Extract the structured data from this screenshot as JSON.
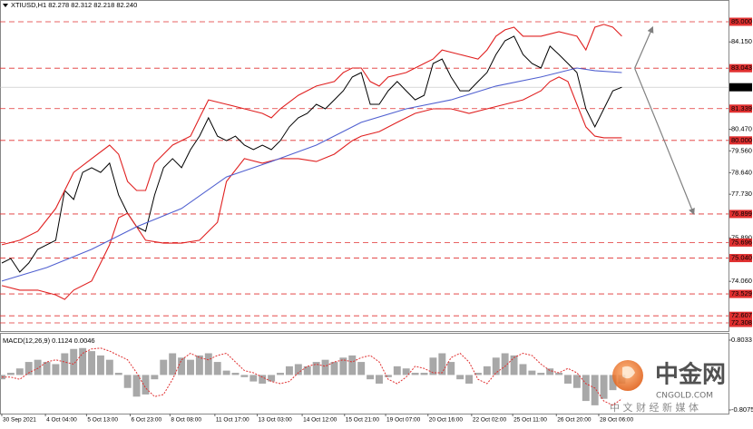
{
  "chart_data": [
    {
      "type": "line",
      "title": "XTIUSD,H1  82.278 82.312 82.218 82.240",
      "xlim": [
        -1.4,
        566.1
      ],
      "ylim": [
        71.965,
        85.917
      ],
      "yticks": [
        {
          "value": 84.15,
          "label": "84.150"
        },
        {
          "value": 80.47,
          "label": "80.470"
        },
        {
          "value": 79.56,
          "label": "79.560"
        },
        {
          "value": 78.64,
          "label": "78.640"
        },
        {
          "value": 77.73,
          "label": "77.730"
        },
        {
          "value": 75.89,
          "label": "75.890"
        },
        {
          "value": 74.06,
          "label": "74.060"
        }
      ],
      "levels_color": "#e03030",
      "levels": [
        {
          "value": 85,
          "label": "85.000"
        },
        {
          "value": 83.043,
          "label": "83.043"
        },
        {
          "value": 81.339,
          "label": "81.339"
        },
        {
          "value": 80,
          "label": "80.000"
        },
        {
          "value": 76.899,
          "label": "76.899"
        },
        {
          "value": 75.696,
          "label": "75.696"
        },
        {
          "value": 75.04,
          "label": "75.040"
        },
        {
          "value": 73.529,
          "label": "73.529"
        },
        {
          "value": 72.607,
          "label": "72.607"
        },
        {
          "value": 72.308,
          "label": "72.308"
        }
      ],
      "current_price": {
        "value": 82.24,
        "label": "82.240"
      },
      "series": [
        {
          "color": "#000000",
          "x": [
            0,
            7,
            14,
            21,
            28,
            35,
            42,
            49,
            56,
            63,
            70,
            77,
            84,
            91,
            98,
            105,
            112,
            119,
            126,
            133,
            140,
            147,
            154,
            161,
            168,
            175,
            182,
            189,
            196,
            203,
            210,
            217,
            224,
            231,
            238,
            245,
            252,
            259,
            266,
            273,
            280,
            287,
            294,
            301,
            308,
            315,
            322,
            329,
            336,
            343,
            350,
            357,
            364,
            371,
            378,
            385,
            392,
            399,
            406,
            413,
            420,
            427,
            434,
            441,
            448,
            455,
            462,
            469,
            476,
            483
          ],
          "values": [
            74.83,
            75.02,
            74.45,
            74.83,
            75.41,
            75.6,
            75.79,
            77.89,
            77.51,
            78.65,
            78.85,
            78.65,
            79.04,
            77.7,
            76.93,
            76.36,
            76.17,
            77.7,
            78.85,
            79.23,
            78.85,
            79.61,
            80.18,
            80.95,
            80.18,
            79.99,
            80.18,
            79.8,
            79.61,
            79.8,
            79.61,
            79.99,
            80.57,
            80.95,
            81.14,
            81.52,
            81.33,
            81.71,
            82.09,
            82.67,
            82.86,
            81.52,
            81.52,
            82.09,
            82.48,
            82.09,
            81.71,
            81.9,
            83.24,
            83.43,
            82.67,
            82.09,
            82.09,
            82.48,
            82.86,
            83.62,
            84.2,
            84.39,
            83.62,
            83.24,
            83.05,
            83.97,
            83.62,
            83.24,
            82.86,
            81.33,
            80.57,
            81.33,
            82.09,
            82.24
          ]
        },
        {
          "color": "#e02020",
          "x": [
            0,
            14,
            28,
            42,
            56,
            70,
            84,
            91,
            98,
            105,
            112,
            119,
            133,
            147,
            154,
            161,
            175,
            189,
            203,
            210,
            217,
            231,
            245,
            259,
            266,
            273,
            280,
            287,
            294,
            301,
            315,
            329,
            336,
            343,
            357,
            371,
            378,
            385,
            392,
            399,
            406,
            420,
            434,
            448,
            455,
            462,
            469,
            476,
            483
          ],
          "values": [
            75.6,
            75.79,
            76.17,
            77.13,
            78.65,
            79.23,
            79.8,
            79.42,
            78.27,
            77.89,
            77.89,
            79.04,
            79.8,
            80.18,
            80.95,
            81.71,
            81.52,
            81.33,
            81.14,
            80.95,
            81.33,
            81.9,
            82.29,
            82.48,
            82.86,
            83.05,
            83.05,
            82.48,
            82.29,
            82.67,
            82.86,
            83.24,
            83.43,
            83.81,
            83.62,
            83.43,
            83.81,
            84.39,
            84.66,
            84.77,
            84.39,
            84.39,
            84.58,
            84.39,
            83.81,
            84.77,
            84.89,
            84.77,
            84.39
          ]
        },
        {
          "color": "#e02020",
          "x": [
            0,
            14,
            28,
            42,
            49,
            56,
            70,
            77,
            84,
            91,
            98,
            112,
            126,
            140,
            154,
            168,
            175,
            189,
            203,
            217,
            231,
            245,
            259,
            273,
            280,
            294,
            308,
            322,
            336,
            350,
            364,
            378,
            392,
            406,
            420,
            427,
            434,
            441,
            448,
            455,
            462,
            469,
            483
          ],
          "values": [
            73.88,
            73.69,
            73.69,
            73.49,
            73.3,
            73.69,
            74.07,
            74.83,
            75.6,
            76.74,
            76.93,
            75.79,
            75.67,
            75.67,
            75.79,
            76.55,
            78.27,
            79.23,
            79.04,
            79.23,
            79.23,
            79.11,
            79.42,
            79.99,
            80.18,
            80.37,
            80.76,
            81.14,
            81.33,
            81.33,
            81.14,
            81.33,
            81.52,
            81.71,
            82.09,
            82.48,
            82.67,
            82.48,
            81.52,
            80.57,
            80.18,
            80.11,
            80.11
          ]
        },
        {
          "color": "#5060d0",
          "x": [
            0,
            35,
            70,
            105,
            140,
            175,
            210,
            245,
            280,
            315,
            350,
            385,
            420,
            448,
            462,
            483
          ],
          "values": [
            74.07,
            74.64,
            75.41,
            76.36,
            77.13,
            78.46,
            79.11,
            79.8,
            80.76,
            81.33,
            81.71,
            82.29,
            82.67,
            83.05,
            82.94,
            82.86
          ]
        }
      ],
      "arrows_color": "#808080",
      "arrows": [
        {
          "x": [
            493,
            507
          ],
          "y": [
            83.04,
            84.77
          ]
        },
        {
          "x": [
            493,
            516,
            539
          ],
          "y": [
            83.04,
            80,
            76.899
          ]
        }
      ]
    },
    {
      "type": "bar",
      "title": "MACD(12,26,9) 0.1124 0.0046",
      "xlim": [
        -1.4,
        566.1
      ],
      "ylim": [
        -0.891,
        0.95
      ],
      "yticks": [
        0.8033,
        -0.8075
      ],
      "xticks": [
        {
          "value": 0,
          "label": "30 Sep 2021"
        },
        {
          "value": 34,
          "label": "4 Oct 04:00"
        },
        {
          "value": 66,
          "label": "5 Oct 13:00"
        },
        {
          "value": 100,
          "label": "6 Oct 23:00"
        },
        {
          "value": 131,
          "label": "8 Oct 08:00"
        },
        {
          "value": 166,
          "label": "11 Oct 17:00"
        },
        {
          "value": 199,
          "label": "13 Oct 03:00"
        },
        {
          "value": 234,
          "label": "14 Oct 12:00"
        },
        {
          "value": 267,
          "label": "15 Oct 21:00"
        },
        {
          "value": 299,
          "label": "19 Oct 07:00"
        },
        {
          "value": 332,
          "label": "20 Oct 16:00"
        },
        {
          "value": 366,
          "label": "22 Oct 02:00"
        },
        {
          "value": 398,
          "label": "25 Oct 11:00"
        },
        {
          "value": 432,
          "label": "26 Oct 20:00"
        },
        {
          "value": 465,
          "label": "28 Oct 06:00"
        }
      ],
      "color": "#a8a8a8",
      "x": [
        0,
        7,
        14,
        21,
        28,
        35,
        42,
        49,
        56,
        63,
        70,
        77,
        84,
        91,
        98,
        105,
        112,
        119,
        126,
        133,
        140,
        147,
        154,
        161,
        168,
        175,
        182,
        189,
        196,
        203,
        210,
        217,
        224,
        231,
        238,
        245,
        252,
        259,
        266,
        273,
        280,
        287,
        294,
        301,
        308,
        315,
        322,
        329,
        336,
        343,
        350,
        357,
        364,
        371,
        378,
        385,
        392,
        399,
        406,
        413,
        420,
        427,
        434,
        441,
        448,
        455,
        462,
        469,
        476,
        483
      ],
      "values": [
        -0.1,
        0.05,
        0.15,
        0.3,
        0.35,
        0.3,
        0.25,
        0.5,
        0.6,
        0.62,
        0.55,
        0.45,
        0.35,
        0.05,
        -0.3,
        -0.5,
        -0.45,
        -0.1,
        0.35,
        0.5,
        0.4,
        0.35,
        0.45,
        0.5,
        0.3,
        0.1,
        0.05,
        -0.05,
        -0.15,
        -0.2,
        -0.15,
        0.05,
        0.2,
        0.25,
        0.2,
        0.3,
        0.35,
        0.3,
        0.4,
        0.45,
        0.3,
        -0.1,
        -0.2,
        -0.05,
        0.2,
        0.15,
        0.05,
        0.05,
        0.4,
        0.5,
        0.3,
        -0.1,
        -0.2,
        0.05,
        0.2,
        0.4,
        0.5,
        0.45,
        0.25,
        0.1,
        0.05,
        0.15,
        0.05,
        -0.2,
        -0.3,
        -0.6,
        -0.7,
        -0.55,
        -0.35,
        -0.2
      ],
      "signal": {
        "color": "#e03030",
        "values": [
          -0.05,
          -0.05,
          -0.1,
          0.05,
          0.15,
          0.3,
          0.35,
          0.3,
          0.25,
          0.5,
          0.6,
          0.62,
          0.55,
          0.45,
          0.35,
          0.05,
          -0.3,
          -0.5,
          -0.45,
          -0.1,
          0.35,
          0.5,
          0.4,
          0.35,
          0.45,
          0.5,
          0.3,
          0.1,
          0.05,
          -0.05,
          -0.15,
          -0.2,
          -0.15,
          0.05,
          0.2,
          0.25,
          0.2,
          0.3,
          0.35,
          0.3,
          0.4,
          0.45,
          0.3,
          -0.1,
          -0.2,
          -0.05,
          0.2,
          0.15,
          0.05,
          0.05,
          0.4,
          0.5,
          0.3,
          -0.1,
          -0.2,
          0.05,
          0.2,
          0.4,
          0.5,
          0.45,
          0.25,
          0.1,
          0.05,
          0.15,
          0.05,
          -0.2,
          -0.3,
          -0.6,
          -0.7,
          -0.55
        ]
      }
    }
  ],
  "watermark": {
    "name": "中金网",
    "domain": "CNGOLD.COM",
    "slogan": "中 文 财 经 新 媒 体"
  }
}
